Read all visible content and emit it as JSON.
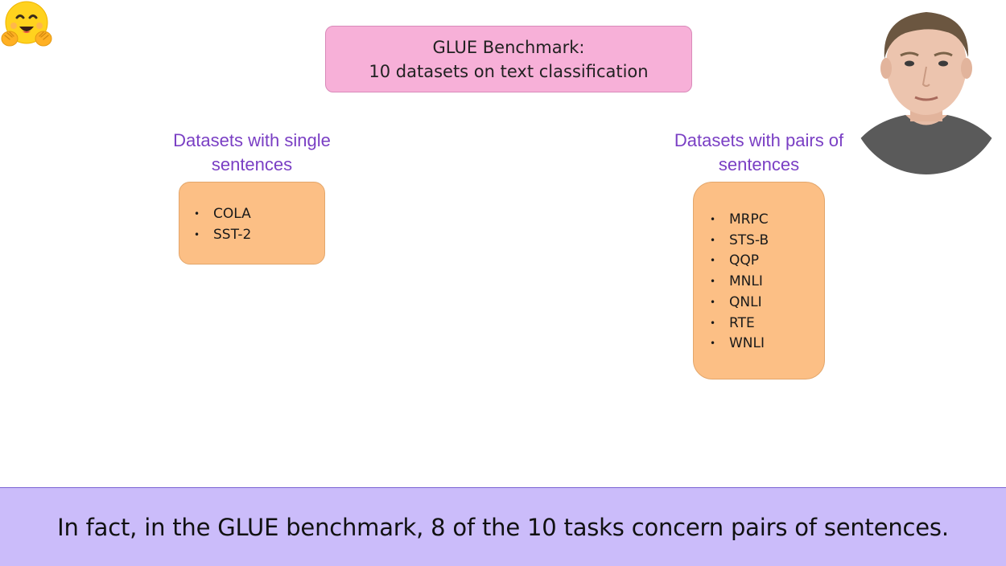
{
  "logo": {
    "icon": "hugging-face-emoji-icon"
  },
  "title_box": {
    "line1": "GLUE Benchmark:",
    "line2": "10 datasets on text classification"
  },
  "single": {
    "heading_line1": "Datasets with single",
    "heading_line2": "sentences",
    "items": [
      "COLA",
      "SST-2"
    ]
  },
  "pairs": {
    "heading_line1": "Datasets with pairs of",
    "heading_line2": "sentences",
    "items": [
      "MRPC",
      "STS-B",
      "QQP",
      "MNLI",
      "QNLI",
      "RTE",
      "WNLI"
    ]
  },
  "subtitle": {
    "text": "In fact, in the GLUE benchmark, 8 of the 10 tasks concern pairs of sentences."
  },
  "colors": {
    "title_box_bg": "#f7b0d8",
    "list_box_bg": "#fcbf85",
    "heading_color": "#7a3fc4",
    "subtitle_bg": "#cbbcfa"
  }
}
